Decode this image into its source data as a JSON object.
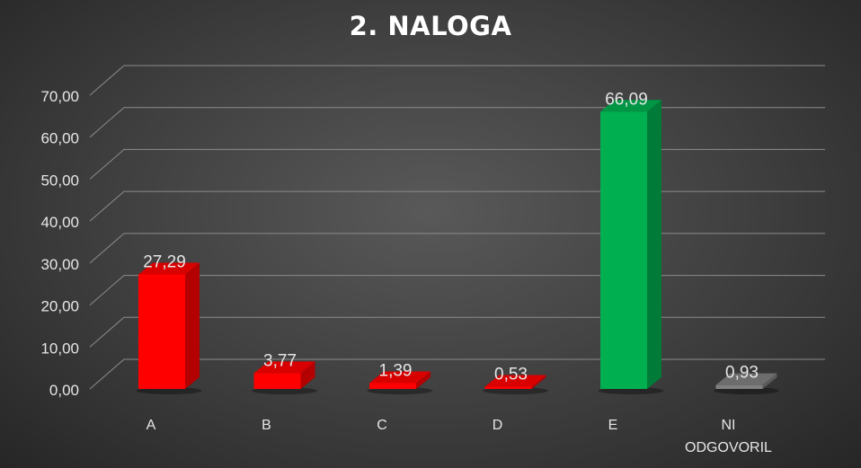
{
  "chart_data": {
    "type": "bar",
    "title": "2. NALOGA",
    "categories": [
      "A",
      "B",
      "C",
      "D",
      "E",
      "NI ODGOVORIL"
    ],
    "series": [
      {
        "values": [
          27.29,
          3.77,
          1.39,
          0.53,
          66.09,
          0.93
        ]
      }
    ],
    "data_labels": [
      "27,29",
      "3,77",
      "1,39",
      "0,53",
      "66,09",
      "0,93"
    ],
    "y_ticks": [
      "0,00",
      "10,00",
      "20,00",
      "30,00",
      "40,00",
      "50,00",
      "60,00",
      "70,00"
    ],
    "ylim": [
      0,
      70
    ],
    "grid": true,
    "legend": "none",
    "style": "3d-columns",
    "colors": {
      "bars": [
        "#ff0000",
        "#ff0000",
        "#ff0000",
        "#ff0000",
        "#00b050",
        "#808080"
      ],
      "gridline": "#8c8c8c",
      "text": "#e6e6e6",
      "title": "#ffffff"
    }
  }
}
